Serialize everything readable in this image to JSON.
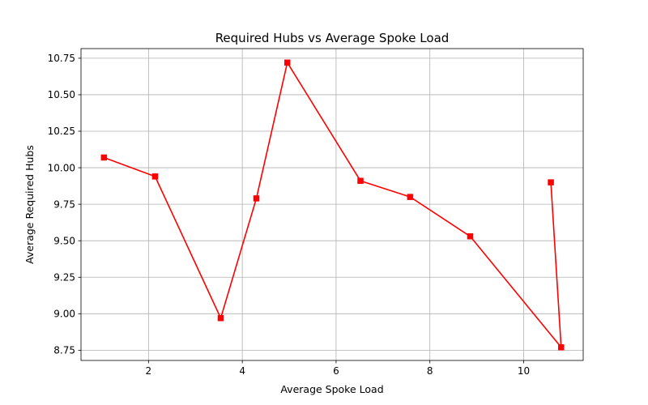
{
  "chart_data": {
    "type": "line",
    "title": "Required Hubs vs Average Spoke Load",
    "xlabel": "Average Spoke Load",
    "ylabel": "Average Required Hubs",
    "xlim": [
      0.56,
      11.27
    ],
    "ylim": [
      8.68,
      10.816
    ],
    "x_ticks": [
      2,
      4,
      6,
      8,
      10
    ],
    "x_tick_labels": [
      "2",
      "4",
      "6",
      "8",
      "10"
    ],
    "y_ticks": [
      8.75,
      9.0,
      9.25,
      9.5,
      9.75,
      10.0,
      10.25,
      10.5,
      10.75
    ],
    "y_tick_labels": [
      "8.75",
      "9.00",
      "9.25",
      "9.50",
      "9.75",
      "10.00",
      "10.25",
      "10.50",
      "10.75"
    ],
    "grid": true,
    "marker": "square",
    "series": [
      {
        "color": "#ff0000",
        "x": [
          1.05,
          2.14,
          3.54,
          4.3,
          4.96,
          6.52,
          7.58,
          8.86,
          10.8,
          10.58
        ],
        "y": [
          10.07,
          9.94,
          8.97,
          9.79,
          10.72,
          9.91,
          9.8,
          9.53,
          8.77,
          9.9
        ]
      }
    ]
  }
}
